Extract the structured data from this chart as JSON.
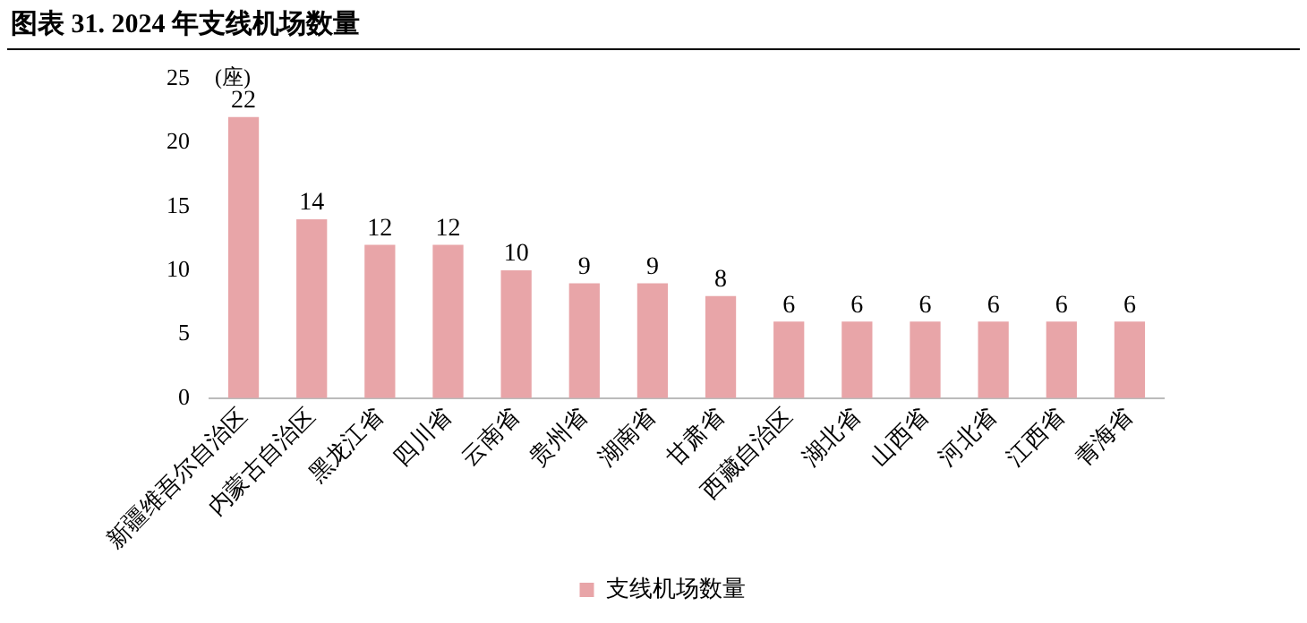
{
  "chart_data": {
    "type": "bar",
    "title": "图表 31. 2024 年支线机场数量",
    "ylabel": "(座)",
    "categories": [
      "新疆维吾尔自治区",
      "内蒙古自治区",
      "黑龙江省",
      "四川省",
      "云南省",
      "贵州省",
      "湖南省",
      "甘肃省",
      "西藏自治区",
      "湖北省",
      "山西省",
      "河北省",
      "江西省",
      "青海省"
    ],
    "series": [
      {
        "name": "支线机场数量",
        "color": "#e8a5a8",
        "values": [
          22,
          14,
          12,
          12,
          10,
          9,
          9,
          8,
          6,
          6,
          6,
          6,
          6,
          6
        ]
      }
    ],
    "ylim": [
      0,
      25
    ],
    "yticks": [
      0,
      5,
      10,
      15,
      20,
      25
    ],
    "grid": false,
    "legend": "bottom",
    "data_labels": true
  }
}
